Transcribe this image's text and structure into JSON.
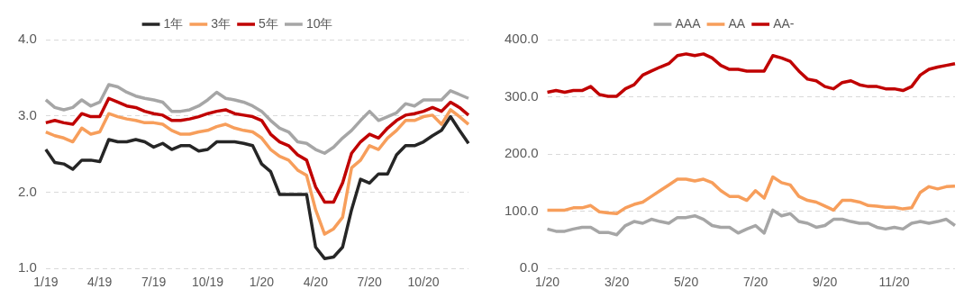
{
  "chart_data": [
    {
      "type": "line",
      "categories": [
        "1/19",
        null,
        null,
        null,
        null,
        null,
        "4/19",
        null,
        null,
        null,
        null,
        null,
        "7/19",
        null,
        null,
        null,
        null,
        null,
        "10/19",
        null,
        null,
        null,
        null,
        null,
        "1/20",
        null,
        null,
        null,
        null,
        null,
        "4/20",
        null,
        null,
        null,
        null,
        null,
        "7/20",
        null,
        null,
        null,
        null,
        null,
        "10/20",
        null,
        null,
        null,
        null,
        null
      ],
      "ylim": [
        1,
        4
      ],
      "yticks": [
        {
          "value": 1,
          "label": "1.0"
        },
        {
          "value": 2,
          "label": "2.0"
        },
        {
          "value": 3,
          "label": "3.0"
        },
        {
          "value": 4,
          "label": "4.0"
        }
      ],
      "grid": "y",
      "legend": "top",
      "series": [
        {
          "name": "1年",
          "color": "#262626",
          "values": [
            2.56,
            2.39,
            2.37,
            2.3,
            2.42,
            2.42,
            2.4,
            2.69,
            2.66,
            2.66,
            2.69,
            2.66,
            2.59,
            2.64,
            2.56,
            2.61,
            2.61,
            2.54,
            2.56,
            2.66,
            2.66,
            2.66,
            2.64,
            2.61,
            2.37,
            2.27,
            1.97,
            1.97,
            1.97,
            1.97,
            1.28,
            1.13,
            1.15,
            1.28,
            1.77,
            2.17,
            2.12,
            2.24,
            2.24,
            2.49,
            2.61,
            2.61,
            2.66,
            2.74,
            2.81,
            2.99,
            2.81,
            2.64
          ]
        },
        {
          "name": "3年",
          "color": "#f79e5b",
          "values": [
            2.79,
            2.74,
            2.71,
            2.66,
            2.84,
            2.76,
            2.79,
            3.03,
            2.99,
            2.96,
            2.94,
            2.91,
            2.91,
            2.89,
            2.81,
            2.76,
            2.76,
            2.79,
            2.81,
            2.86,
            2.89,
            2.84,
            2.81,
            2.79,
            2.71,
            2.56,
            2.47,
            2.42,
            2.29,
            2.22,
            1.77,
            1.45,
            1.52,
            1.67,
            2.32,
            2.42,
            2.61,
            2.56,
            2.71,
            2.81,
            2.94,
            2.94,
            2.99,
            3.01,
            2.89,
            3.08,
            2.99,
            2.89
          ]
        },
        {
          "name": "5年",
          "color": "#c00000",
          "values": [
            2.91,
            2.94,
            2.91,
            2.89,
            3.03,
            2.99,
            2.99,
            3.23,
            3.18,
            3.13,
            3.11,
            3.06,
            3.03,
            3.01,
            2.94,
            2.94,
            2.96,
            2.99,
            3.03,
            3.06,
            3.08,
            3.03,
            3.01,
            2.99,
            2.94,
            2.76,
            2.66,
            2.61,
            2.49,
            2.42,
            2.07,
            1.87,
            1.87,
            2.12,
            2.51,
            2.66,
            2.76,
            2.71,
            2.84,
            2.94,
            3.01,
            3.03,
            3.06,
            3.11,
            3.06,
            3.18,
            3.11,
            3.01
          ]
        },
        {
          "name": "10年",
          "color": "#a6a6a6",
          "values": [
            3.21,
            3.11,
            3.08,
            3.11,
            3.21,
            3.13,
            3.18,
            3.41,
            3.38,
            3.31,
            3.26,
            3.23,
            3.21,
            3.18,
            3.06,
            3.06,
            3.08,
            3.13,
            3.21,
            3.31,
            3.23,
            3.21,
            3.18,
            3.13,
            3.06,
            2.94,
            2.84,
            2.79,
            2.66,
            2.64,
            2.56,
            2.51,
            2.59,
            2.71,
            2.81,
            2.94,
            3.06,
            2.94,
            2.99,
            3.04,
            3.16,
            3.13,
            3.21,
            3.21,
            3.21,
            3.33,
            3.28,
            3.23
          ]
        }
      ]
    },
    {
      "type": "line",
      "categories": [
        "1/20",
        null,
        null,
        null,
        null,
        null,
        null,
        null,
        "3/20",
        null,
        null,
        null,
        null,
        null,
        null,
        null,
        "5/20",
        null,
        null,
        null,
        null,
        null,
        null,
        null,
        "7/20",
        null,
        null,
        null,
        null,
        null,
        null,
        null,
        "9/20",
        null,
        null,
        null,
        null,
        null,
        null,
        null,
        "11/20",
        null,
        null,
        null,
        null,
        null,
        null,
        null
      ],
      "ylim": [
        0,
        400
      ],
      "yticks": [
        {
          "value": 0,
          "label": "0.0"
        },
        {
          "value": 100,
          "label": "100.0"
        },
        {
          "value": 200,
          "label": "200.0"
        },
        {
          "value": 300,
          "label": "300.0"
        },
        {
          "value": 400,
          "label": "400.0"
        }
      ],
      "grid": "y",
      "legend": "top",
      "series": [
        {
          "name": "AAA",
          "color": "#a6a6a6",
          "values": [
            69,
            65,
            65,
            69,
            72,
            72,
            63,
            63,
            59,
            75,
            82,
            79,
            86,
            82,
            79,
            89,
            89,
            92,
            86,
            75,
            72,
            72,
            62,
            69,
            75,
            62,
            102,
            92,
            96,
            82,
            79,
            72,
            75,
            86,
            86,
            82,
            79,
            79,
            72,
            69,
            72,
            69,
            79,
            82,
            79,
            82,
            86,
            75
          ]
        },
        {
          "name": "AA",
          "color": "#f79e5b",
          "values": [
            102,
            102,
            102,
            106,
            106,
            110,
            99,
            97,
            96,
            106,
            112,
            116,
            126,
            136,
            146,
            156,
            156,
            153,
            156,
            150,
            136,
            126,
            126,
            119,
            136,
            123,
            160,
            150,
            146,
            126,
            119,
            116,
            109,
            102,
            119,
            119,
            116,
            110,
            109,
            107,
            107,
            104,
            106,
            133,
            143,
            139,
            143,
            144
          ]
        },
        {
          "name": "AA-",
          "color": "#c00000",
          "values": [
            308,
            311,
            308,
            311,
            311,
            318,
            304,
            301,
            301,
            314,
            321,
            338,
            345,
            352,
            358,
            372,
            375,
            372,
            375,
            368,
            355,
            348,
            348,
            345,
            345,
            345,
            372,
            368,
            362,
            345,
            331,
            328,
            318,
            314,
            325,
            328,
            321,
            318,
            318,
            314,
            314,
            311,
            318,
            338,
            348,
            352,
            355,
            358
          ]
        }
      ]
    }
  ]
}
